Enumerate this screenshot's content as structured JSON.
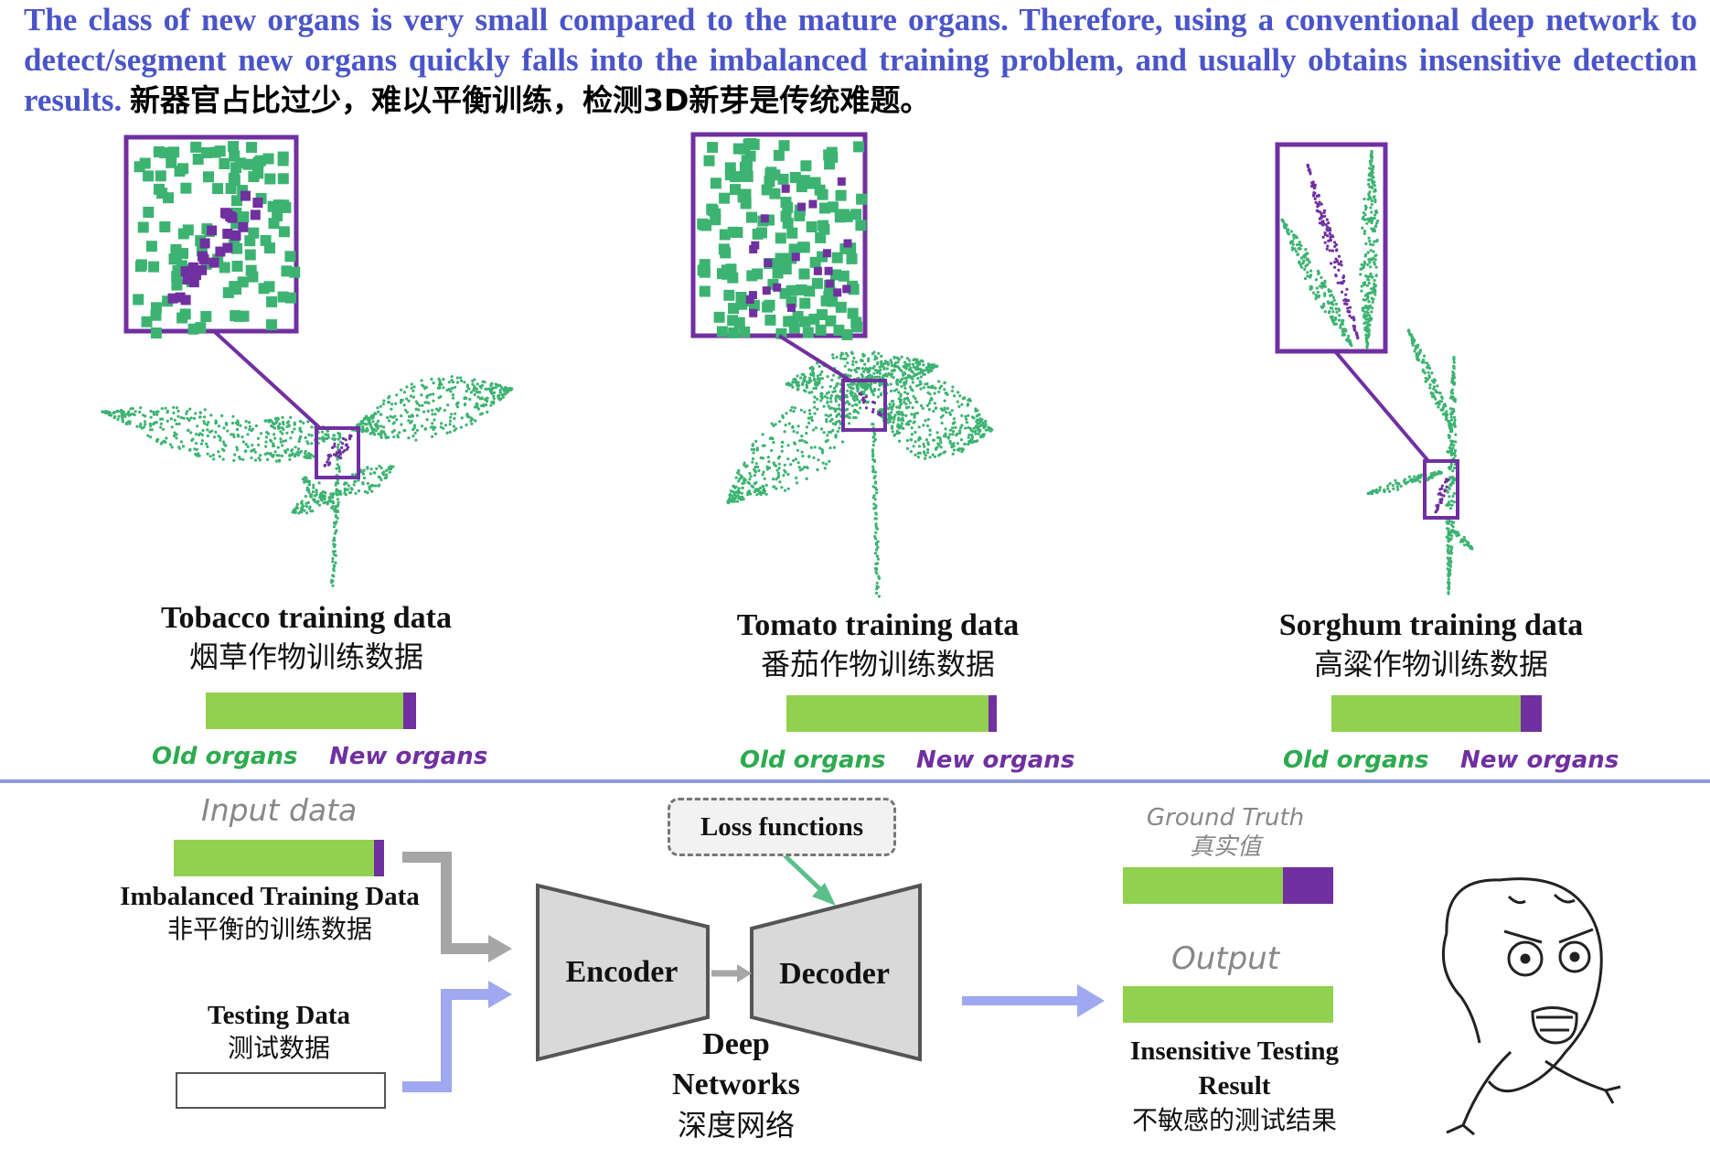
{
  "intro": {
    "en": "The class of new organs is very small compared to the mature organs. Therefore, using a conventional deep network to detect/segment new organs quickly falls into the imbalanced training problem, and usually obtains insensitive detection results.",
    "cn": "新器官占比过少，难以平衡训练，检测3D新芽是传统难题。"
  },
  "datasets": [
    {
      "name_en": "Tobacco training data",
      "name_cn": "烟草作物训练数据",
      "old_fraction": 0.94,
      "new_fraction": 0.06
    },
    {
      "name_en": "Tomato training data",
      "name_cn": "番茄作物训练数据",
      "old_fraction": 0.96,
      "new_fraction": 0.04
    },
    {
      "name_en": "Sorghum training data",
      "name_cn": "高粱作物训练数据",
      "old_fraction": 0.9,
      "new_fraction": 0.1
    }
  ],
  "legend": {
    "old": "Old organs",
    "new": "New organs"
  },
  "colors": {
    "old": "#92d050",
    "new": "#7030a0",
    "point_green": "#3cb371",
    "frame": "#7030a0",
    "arrow_blue": "#9fa8f0",
    "arrow_gray": "#a6a6a6",
    "arrow_green": "#5bbf8a"
  },
  "pipeline": {
    "input_label": "Input data",
    "train_en": "Imbalanced Training Data",
    "train_cn": "非平衡的训练数据",
    "train_old_fraction": 0.95,
    "test_en": "Testing Data",
    "test_cn": "测试数据",
    "loss": "Loss functions",
    "encoder": "Encoder",
    "decoder": "Decoder",
    "net_en1": "Deep",
    "net_en2": "Networks",
    "net_cn": "深度网络",
    "gt_en": "Ground Truth",
    "gt_cn": "真实值",
    "gt_old_fraction": 0.76,
    "output_label": "Output",
    "result_en1": "Insensitive Testing",
    "result_en2": "Result",
    "result_cn": "不敏感的测试结果",
    "output_old_fraction": 1.0
  },
  "icons": [
    "tobacco-plant-icon",
    "tomato-plant-icon",
    "sorghum-plant-icon",
    "angry-face-icon"
  ]
}
